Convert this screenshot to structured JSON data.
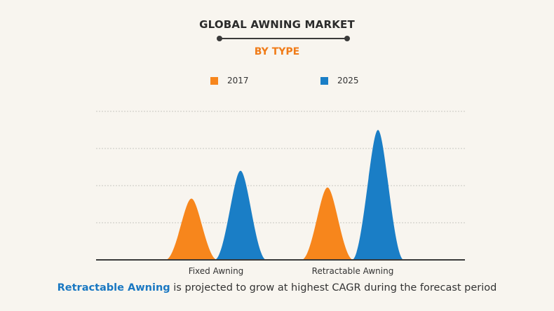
{
  "chart_data": {
    "type": "area",
    "title": "GLOBAL AWNING MARKET",
    "subtitle": "BY TYPE",
    "categories": [
      "Fixed Awning",
      "Retractable Awning"
    ],
    "series": [
      {
        "name": "2017",
        "color": "#f7861c",
        "values": [
          1.65,
          1.95
        ]
      },
      {
        "name": "2025",
        "color": "#1a7ec6",
        "values": [
          2.4,
          3.5
        ]
      }
    ],
    "ylim": [
      0,
      4
    ],
    "grid": true,
    "legend_position": "top-center",
    "xlabel": "",
    "ylabel": ""
  },
  "caption": {
    "highlight": "Retractable Awning",
    "rest": " is projected to grow at highest CAGR during the forecast period"
  }
}
